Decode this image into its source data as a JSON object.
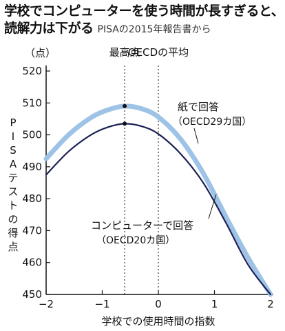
{
  "title_line1": "学校でコンピューターを使う時間が長すぎると、",
  "title_line2": "読解力は下がる",
  "source": "PISAの2015年報告書から",
  "chart_data": {
    "type": "line",
    "ylabel": "PISAテストの得点",
    "y_unit": "（点）",
    "xlabel": "学校での使用時間の指数",
    "xlim": [
      -2,
      2
    ],
    "ylim": [
      450,
      520
    ],
    "x_ticks": [
      "−2",
      "−1",
      "0",
      "1",
      "2"
    ],
    "x_tick_values": [
      -2,
      -1,
      0,
      1,
      2
    ],
    "y_ticks": [
      "520",
      "510",
      "500",
      "490",
      "480",
      "470",
      "460",
      "450"
    ],
    "y_tick_values": [
      520,
      510,
      500,
      490,
      480,
      470,
      460,
      450
    ],
    "reference_lines": [
      {
        "label": "最高点",
        "x": -0.6
      },
      {
        "label": "OECDの平均",
        "x": 0
      }
    ],
    "series": [
      {
        "name": "紙で回答",
        "subname": "（OECD29カ国）",
        "color": "#9ec3e6",
        "x": [
          -2,
          -1.6,
          -1.2,
          -0.9,
          -0.6,
          -0.3,
          0,
          0.4,
          0.8,
          1.2,
          1.6,
          2
        ],
        "values": [
          492.5,
          500.0,
          505.4,
          507.8,
          509.0,
          508.2,
          505.6,
          498.6,
          488.0,
          474.5,
          461.5,
          450.0
        ]
      },
      {
        "name": "コンピューターで回答",
        "subname": "（OECD20カ国）",
        "color": "#1c2156",
        "x": [
          -2,
          -1.6,
          -1.2,
          -0.9,
          -0.6,
          -0.3,
          0,
          0.4,
          0.8,
          1.2,
          1.6,
          2
        ],
        "values": [
          487.5,
          494.8,
          500.0,
          502.4,
          503.5,
          502.7,
          500.3,
          494.0,
          485.0,
          472.6,
          459.3,
          450.0
        ]
      }
    ],
    "peak_points": [
      {
        "x": -0.6,
        "y": 509.0
      },
      {
        "x": -0.6,
        "y": 503.5
      }
    ]
  }
}
